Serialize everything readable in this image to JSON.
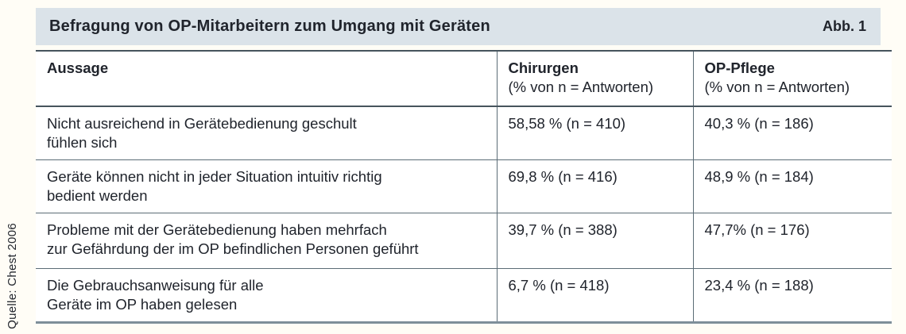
{
  "figure": {
    "title": "Befragung von OP-Mitarbeitern zum Umgang mit Geräten",
    "label": "Abb. 1",
    "source": "Quelle: Chest 2006"
  },
  "table": {
    "columns": [
      {
        "title": "Aussage",
        "subtitle": ""
      },
      {
        "title": "Chirurgen",
        "subtitle": "(% von n = Antworten)"
      },
      {
        "title": "OP-Pflege",
        "subtitle": "(% von n = Antworten)"
      }
    ],
    "rows": [
      {
        "aussage": [
          "Nicht ausreichend in Gerätebedienung geschult",
          "fühlen sich"
        ],
        "chirurgen": "58,58 % (n = 410)",
        "op_pflege": "40,3 % (n = 186)"
      },
      {
        "aussage": [
          "Geräte können nicht in jeder Situation intuitiv richtig",
          "bedient werden"
        ],
        "chirurgen": "69,8 % (n = 416)",
        "op_pflege": "48,9 % (n = 184)"
      },
      {
        "aussage": [
          "Probleme mit der Gerätebedienung haben mehrfach",
          "zur Gefährdung der im OP befindlichen Personen geführt"
        ],
        "chirurgen": "39,7 % (n = 388)",
        "op_pflege": "47,7% (n = 176)"
      },
      {
        "aussage": [
          "Die Gebrauchsanweisung für alle",
          "Geräte im OP haben gelesen"
        ],
        "chirurgen": "6,7 % (n = 418)",
        "op_pflege": "23,4 % (n = 188)"
      }
    ]
  },
  "colors": {
    "titlebar_bg": "#dbe3e9",
    "text": "#20242c",
    "line_dark": "#46545d",
    "line_mid": "#5b6c76",
    "line_bottom": "#7e8f99",
    "page_bg": "#fffdf6"
  }
}
